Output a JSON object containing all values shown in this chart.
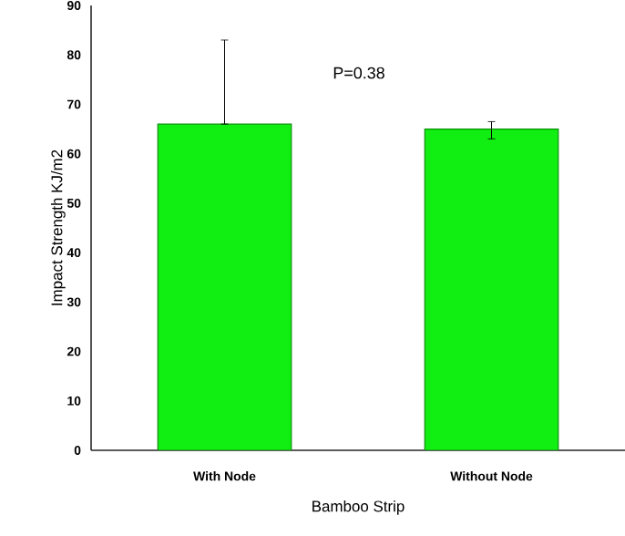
{
  "chart_data": {
    "type": "bar",
    "xlabel": "Bamboo Strip",
    "ylabel": "Impact Strength KJ/m2",
    "categories": [
      "With Node",
      "Without Node"
    ],
    "values": [
      66,
      65
    ],
    "errors": [
      [
        66,
        83
      ],
      [
        63,
        66.5
      ]
    ],
    "color": "#11ee11",
    "ylim": [
      0,
      90
    ],
    "yticks": [
      0,
      10,
      20,
      30,
      40,
      50,
      60,
      70,
      80,
      90
    ],
    "annotations": [
      "P=0.38"
    ]
  }
}
